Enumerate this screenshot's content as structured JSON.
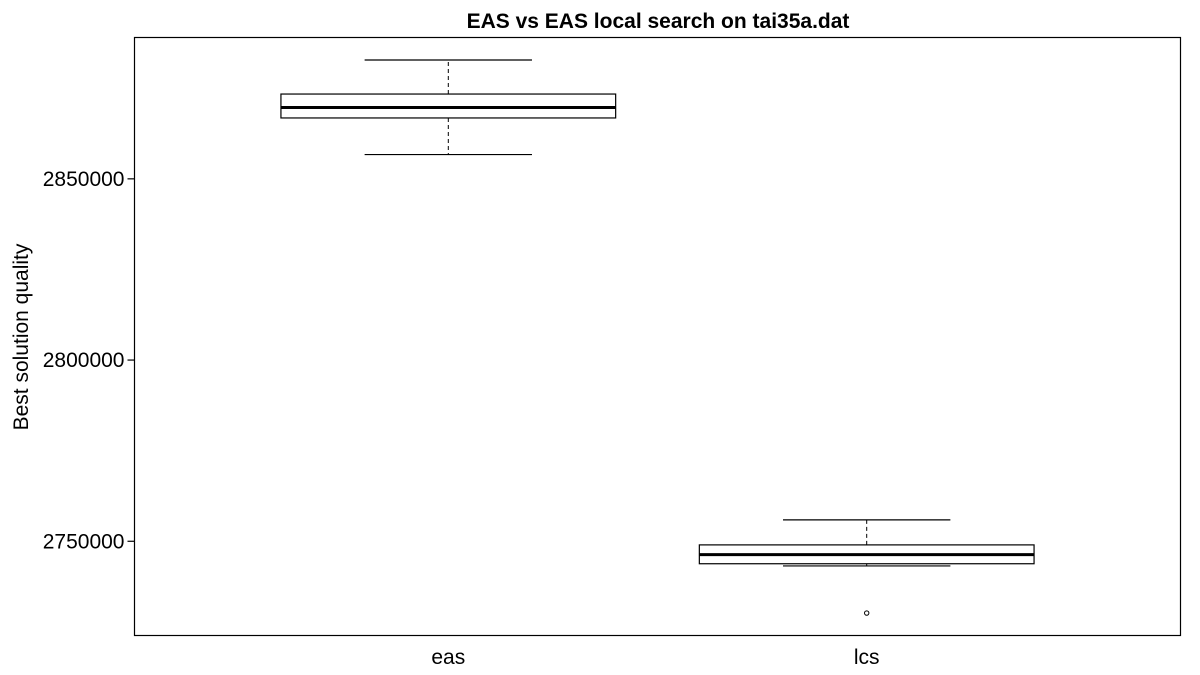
{
  "chart_data": {
    "type": "boxplot",
    "title": "EAS vs EAS local search on tai35a.dat",
    "xlabel": "",
    "ylabel": "Best solution quality",
    "ylim": [
      2724000,
      2889000
    ],
    "yticks": [
      2750000,
      2800000,
      2850000
    ],
    "ytick_labels": [
      "2750000",
      "2800000",
      "2850000"
    ],
    "categories": [
      "eas",
      "lcs"
    ],
    "boxes": [
      {
        "category": "eas",
        "whisker_low": 2856700,
        "q1": 2866800,
        "median": 2869700,
        "q3": 2873400,
        "whisker_high": 2882800,
        "outliers": []
      },
      {
        "category": "lcs",
        "whisker_low": 2743200,
        "q1": 2743800,
        "median": 2746300,
        "q3": 2749000,
        "whisker_high": 2755900,
        "outliers": [
          2730200
        ]
      }
    ],
    "grid": false,
    "legend": "none"
  }
}
